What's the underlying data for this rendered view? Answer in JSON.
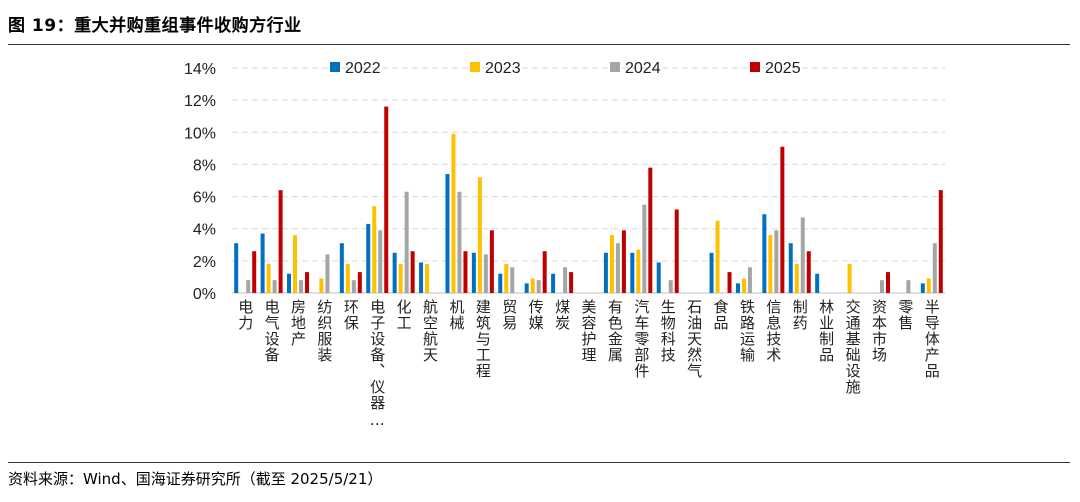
{
  "figure": {
    "title": "图 19：重大并购重组事件收购方行业",
    "source": "资料来源：Wind、国海证券研究所（截至 2025/5/21）"
  },
  "chart_data": {
    "type": "bar",
    "title": "",
    "xlabel": "",
    "ylabel": "",
    "ylim": [
      0,
      14
    ],
    "y_ticks": [
      "0%",
      "2%",
      "4%",
      "6%",
      "8%",
      "10%",
      "12%",
      "14%"
    ],
    "grid": "horizontal dashed",
    "legend_position": "top",
    "categories": [
      "电力",
      "电气设备",
      "房地产",
      "纺织服装",
      "环保",
      "电子设备、仪器…",
      "化工",
      "航空航天",
      "机械",
      "建筑与工程",
      "贸易",
      "传媒",
      "煤炭",
      "美容护理",
      "有色金属",
      "汽车零部件",
      "生物科技",
      "石油天然气",
      "食品",
      "铁路运输",
      "信息技术",
      "制药",
      "林业制品",
      "交通基础设施",
      "资本市场",
      "零售",
      "半导体产品"
    ],
    "series": [
      {
        "name": "2022",
        "color": "#0070C0",
        "values": [
          3.1,
          3.7,
          1.2,
          0,
          3.1,
          4.3,
          2.5,
          1.9,
          7.4,
          2.5,
          1.2,
          0.6,
          1.2,
          0,
          2.5,
          2.5,
          1.9,
          0,
          2.5,
          0.6,
          4.9,
          3.1,
          1.2,
          0,
          0,
          0,
          0.6
        ]
      },
      {
        "name": "2023",
        "color": "#FFC000",
        "values": [
          0,
          1.8,
          3.6,
          0.9,
          1.8,
          5.4,
          1.8,
          1.8,
          9.9,
          7.2,
          1.8,
          0.9,
          0,
          0,
          3.6,
          2.7,
          0,
          0,
          4.5,
          0.9,
          3.6,
          1.8,
          0,
          1.8,
          0,
          0,
          0.9
        ]
      },
      {
        "name": "2024",
        "color": "#A5A5A5",
        "values": [
          0.8,
          0.8,
          0.8,
          2.4,
          0.8,
          3.9,
          6.3,
          0,
          6.3,
          2.4,
          1.6,
          0.8,
          1.6,
          0,
          3.1,
          5.5,
          0.8,
          0,
          0,
          1.6,
          3.9,
          4.7,
          0,
          0,
          0.8,
          0.8,
          3.1
        ]
      },
      {
        "name": "2025",
        "color": "#C00000",
        "values": [
          2.6,
          6.4,
          1.3,
          0,
          1.3,
          11.6,
          2.6,
          0,
          2.6,
          3.9,
          0,
          2.6,
          1.3,
          0,
          3.9,
          7.8,
          5.2,
          0,
          1.3,
          0,
          9.1,
          2.6,
          0,
          0,
          1.3,
          0,
          6.4
        ]
      }
    ]
  }
}
